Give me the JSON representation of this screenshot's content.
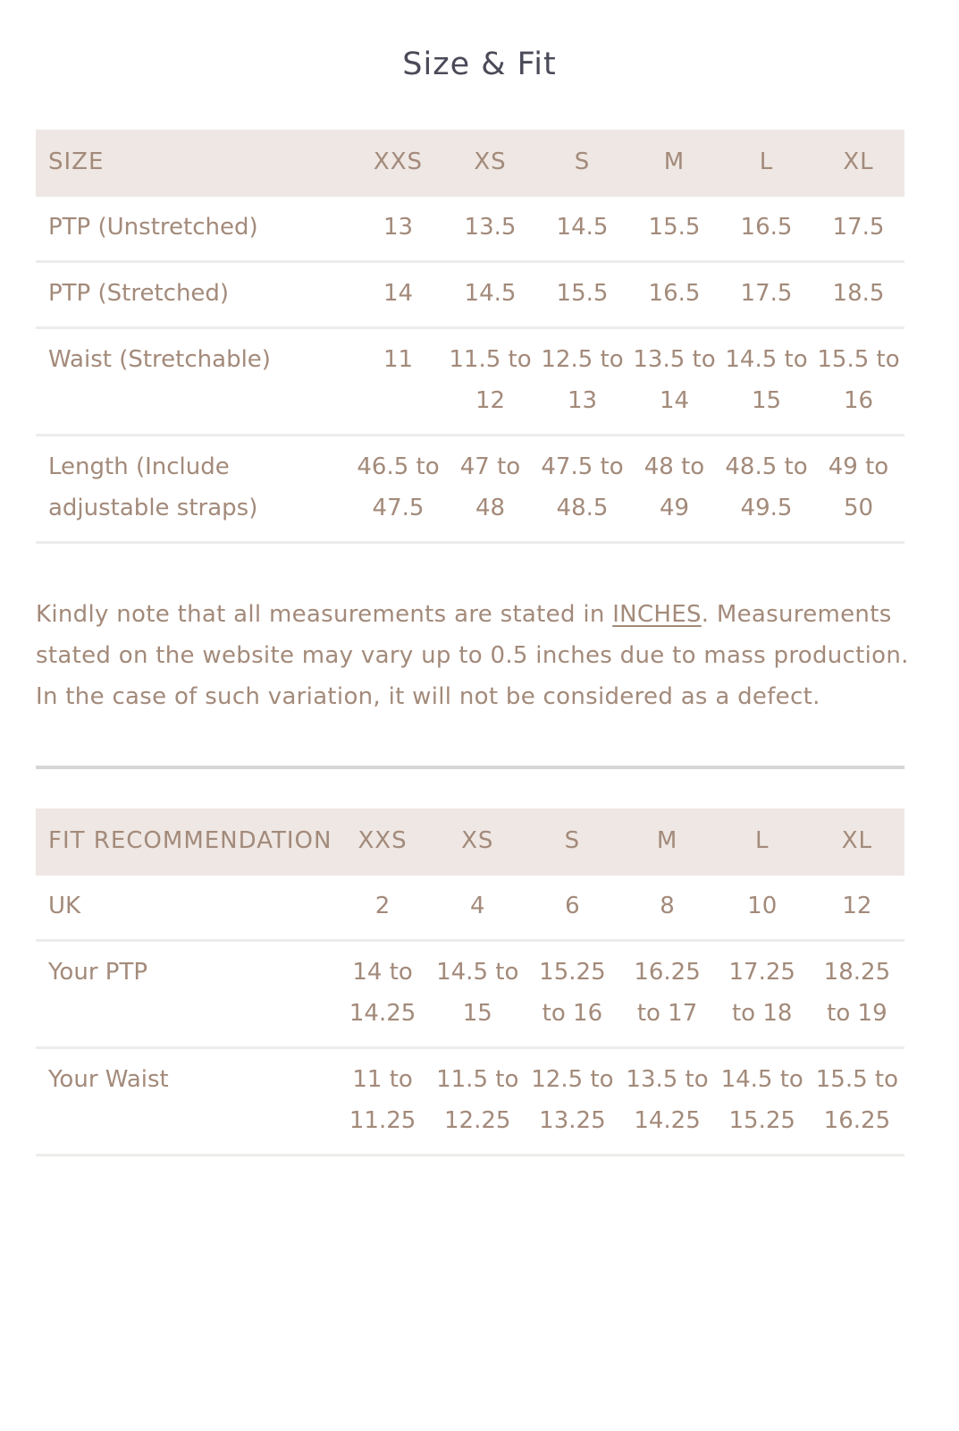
{
  "title": "Size & Fit",
  "size_table": {
    "headers": [
      "SIZE",
      "XXS",
      "XS",
      "S",
      "M",
      "L",
      "XL"
    ],
    "rows": [
      {
        "label": "PTP (Unstretched)",
        "values": [
          "13",
          "13.5",
          "14.5",
          "15.5",
          "16.5",
          "17.5"
        ]
      },
      {
        "label": "PTP (Stretched)",
        "values": [
          "14",
          "14.5",
          "15.5",
          "16.5",
          "17.5",
          "18.5"
        ]
      },
      {
        "label": "Waist (Stretchable)",
        "values": [
          "11",
          "11.5 to 12",
          "12.5 to 13",
          "13.5 to 14",
          "14.5 to 15",
          "15.5 to 16"
        ]
      },
      {
        "label": "Length (Include adjustable straps)",
        "values": [
          "46.5 to 47.5",
          "47 to 48",
          "47.5 to 48.5",
          "48 to 49",
          "48.5 to 49.5",
          "49 to 50"
        ]
      }
    ]
  },
  "note": {
    "before": "Kindly note that all measurements are stated in ",
    "link": "INCHES",
    "after": ". Measurements stated on the website may vary up to 0.5 inches due to mass production. In the case of such variation, it will not be considered as a defect."
  },
  "fit_table": {
    "headers": [
      "FIT RECOMMENDATION",
      "XXS",
      "XS",
      "S",
      "M",
      "L",
      "XL"
    ],
    "rows": [
      {
        "label": "UK",
        "values": [
          "2",
          "4",
          "6",
          "8",
          "10",
          "12"
        ]
      },
      {
        "label": "Your PTP",
        "values": [
          "14 to 14.25",
          "14.5 to 15",
          "15.25 to 16",
          "16.25 to 17",
          "17.25 to 18",
          "18.25 to 19"
        ]
      },
      {
        "label": "Your Waist",
        "values": [
          "11 to 11.25",
          "11.5 to 12.25",
          "12.5 to 13.25",
          "13.5 to 14.25",
          "14.5 to 15.25",
          "15.5 to 16.25"
        ]
      }
    ]
  },
  "colors": {
    "text": "#a38a7a",
    "title": "#4a4a58",
    "header_bg": "#eee7e3"
  }
}
